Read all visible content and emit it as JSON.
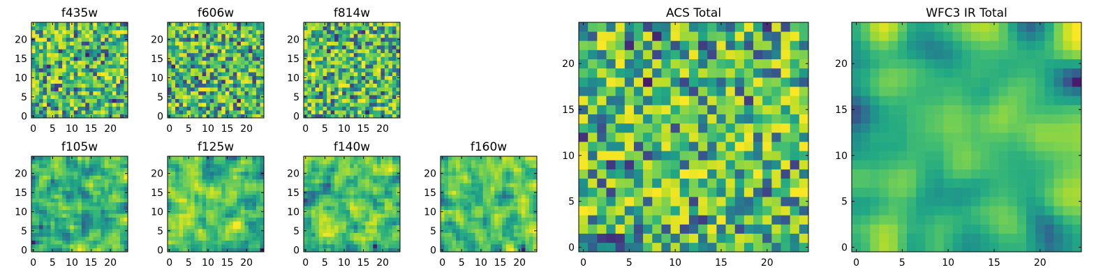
{
  "chart_data": [
    {
      "type": "heatmap",
      "title": "f435w",
      "x_ticks": [
        0,
        5,
        10,
        15,
        20
      ],
      "y_ticks": [
        0,
        5,
        10,
        15,
        20
      ],
      "xlim": [
        -0.5,
        24.5
      ],
      "ylim": [
        -0.5,
        24.5
      ],
      "grid_size": [
        25,
        25
      ],
      "colormap": "viridis",
      "texture": "uncorrelated",
      "seed": 11,
      "z": []
    },
    {
      "type": "heatmap",
      "title": "f606w",
      "x_ticks": [
        0,
        5,
        10,
        15,
        20
      ],
      "y_ticks": [
        0,
        5,
        10,
        15,
        20
      ],
      "xlim": [
        -0.5,
        24.5
      ],
      "ylim": [
        -0.5,
        24.5
      ],
      "grid_size": [
        25,
        25
      ],
      "colormap": "viridis",
      "texture": "uncorrelated",
      "seed": 23,
      "z": []
    },
    {
      "type": "heatmap",
      "title": "f814w",
      "x_ticks": [
        0,
        5,
        10,
        15,
        20
      ],
      "y_ticks": [
        0,
        5,
        10,
        15,
        20
      ],
      "xlim": [
        -0.5,
        24.5
      ],
      "ylim": [
        -0.5,
        24.5
      ],
      "grid_size": [
        25,
        25
      ],
      "colormap": "viridis",
      "texture": "uncorrelated",
      "seed": 37,
      "z": []
    },
    {
      "type": "heatmap",
      "title": "f105w",
      "x_ticks": [
        0,
        5,
        10,
        15,
        20
      ],
      "y_ticks": [
        0,
        5,
        10,
        15,
        20
      ],
      "xlim": [
        -0.5,
        24.5
      ],
      "ylim": [
        -0.5,
        24.5
      ],
      "grid_size": [
        25,
        25
      ],
      "colormap": "viridis",
      "texture": "correlated",
      "seed": 41,
      "z": []
    },
    {
      "type": "heatmap",
      "title": "f125w",
      "x_ticks": [
        0,
        5,
        10,
        15,
        20
      ],
      "y_ticks": [
        0,
        5,
        10,
        15,
        20
      ],
      "xlim": [
        -0.5,
        24.5
      ],
      "ylim": [
        -0.5,
        24.5
      ],
      "grid_size": [
        25,
        25
      ],
      "colormap": "viridis",
      "texture": "correlated",
      "seed": 53,
      "z": []
    },
    {
      "type": "heatmap",
      "title": "f140w",
      "x_ticks": [
        0,
        5,
        10,
        15,
        20
      ],
      "y_ticks": [
        0,
        5,
        10,
        15,
        20
      ],
      "xlim": [
        -0.5,
        24.5
      ],
      "ylim": [
        -0.5,
        24.5
      ],
      "grid_size": [
        25,
        25
      ],
      "colormap": "viridis",
      "texture": "correlated",
      "seed": 67,
      "z": []
    },
    {
      "type": "heatmap",
      "title": "f160w",
      "x_ticks": [
        0,
        5,
        10,
        15,
        20
      ],
      "y_ticks": [
        0,
        5,
        10,
        15,
        20
      ],
      "xlim": [
        -0.5,
        24.5
      ],
      "ylim": [
        -0.5,
        24.5
      ],
      "grid_size": [
        25,
        25
      ],
      "colormap": "viridis",
      "texture": "correlated",
      "seed": 79,
      "z": []
    },
    {
      "type": "heatmap",
      "title": "ACS Total",
      "x_ticks": [
        0,
        5,
        10,
        15,
        20
      ],
      "y_ticks": [
        0,
        5,
        10,
        15,
        20
      ],
      "xlim": [
        -0.5,
        24.5
      ],
      "ylim": [
        -0.5,
        24.5
      ],
      "grid_size": [
        25,
        25
      ],
      "colormap": "viridis",
      "texture": "uncorrelated",
      "seed": 97,
      "z": []
    },
    {
      "type": "heatmap",
      "title": "WFC3 IR Total",
      "x_ticks": [
        0,
        5,
        10,
        15,
        20
      ],
      "y_ticks": [
        0,
        5,
        10,
        15,
        20
      ],
      "xlim": [
        -0.5,
        24.5
      ],
      "ylim": [
        -0.5,
        24.5
      ],
      "grid_size": [
        25,
        25
      ],
      "colormap": "viridis",
      "texture": "smooth",
      "seed": 113,
      "z": []
    }
  ]
}
